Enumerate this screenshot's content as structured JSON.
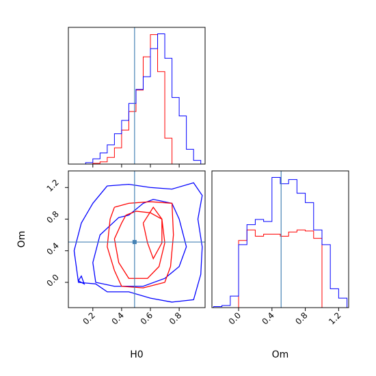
{
  "chart_data": {
    "type": "corner",
    "parameters": [
      "H0",
      "Om"
    ],
    "truth": {
      "H0": 0.49,
      "Om": 0.51
    },
    "colors": {
      "series_a": "#ff0000",
      "series_b": "#0000ff",
      "truth": "#4682b4"
    },
    "panels": [
      {
        "id": "hist-H0",
        "type": "histogram",
        "parameter": "H0",
        "xlim": [
          0.03,
          0.98
        ],
        "bin_edges": [
          0.05,
          0.1,
          0.15,
          0.2,
          0.25,
          0.3,
          0.35,
          0.4,
          0.45,
          0.5,
          0.55,
          0.6,
          0.65,
          0.7,
          0.75,
          0.8,
          0.85,
          0.9,
          0.95
        ],
        "series": [
          {
            "color": "#ff0000",
            "heights": [
              0,
              0,
              0,
              1,
              3,
              9,
              22,
              46,
              71,
              100,
              145,
              175,
              125,
              35,
              0,
              0,
              0,
              0
            ]
          },
          {
            "color": "#0000ff",
            "heights": [
              0,
              0,
              2,
              7,
              15,
              26,
              41,
              59,
              82,
              101,
              118,
              156,
              176,
              143,
              90,
              65,
              20,
              5
            ]
          }
        ]
      },
      {
        "id": "hist-Om",
        "type": "histogram",
        "parameter": "Om",
        "xlim": [
          -0.32,
          1.32
        ],
        "bin_edges": [
          -0.3,
          -0.2,
          -0.1,
          0.0,
          0.1,
          0.2,
          0.3,
          0.4,
          0.5,
          0.6,
          0.7,
          0.8,
          0.9,
          1.0,
          1.1,
          1.2,
          1.3
        ],
        "series": [
          {
            "color": "#ff0000",
            "heights": [
              0,
              0,
              0,
              64,
              74,
              68,
              70,
              70,
              68,
              72,
              74,
              73,
              66,
              0,
              0,
              0
            ]
          },
          {
            "color": "#0000ff",
            "heights": [
              1,
              2,
              11,
              60,
              79,
              84,
              82,
              124,
              118,
              122,
              109,
              100,
              74,
              60,
              18,
              9
            ]
          }
        ]
      },
      {
        "id": "contour-H0-Om",
        "type": "contour",
        "x": "H0",
        "y": "Om",
        "xlim": [
          0.03,
          0.98
        ],
        "ylim": [
          -0.32,
          1.41
        ],
        "series": [
          {
            "color": "#0000ff",
            "contours": [
              [
                [
                  0.3,
                  1.22
                ],
                [
                  0.45,
                  1.24
                ],
                [
                  0.6,
                  1.2
                ],
                [
                  0.75,
                  1.18
                ],
                [
                  0.9,
                  1.26
                ],
                [
                  0.96,
                  1.1
                ],
                [
                  0.93,
                  0.8
                ],
                [
                  0.96,
                  0.45
                ],
                [
                  0.95,
                  0.1
                ],
                [
                  0.9,
                  -0.22
                ],
                [
                  0.75,
                  -0.25
                ],
                [
                  0.6,
                  -0.2
                ],
                [
                  0.45,
                  -0.12
                ],
                [
                  0.3,
                  -0.12
                ],
                [
                  0.22,
                  -0.02
                ],
                [
                  0.1,
                  0.0
                ],
                [
                  0.07,
                  0.4
                ],
                [
                  0.12,
                  0.75
                ],
                [
                  0.2,
                  1.0
                ],
                [
                  0.3,
                  1.22
                ]
              ],
              [
                [
                  0.45,
                  0.85
                ],
                [
                  0.55,
                  1.0
                ],
                [
                  0.62,
                  1.05
                ],
                [
                  0.75,
                  1.0
                ],
                [
                  0.8,
                  0.8
                ],
                [
                  0.85,
                  0.45
                ],
                [
                  0.8,
                  0.2
                ],
                [
                  0.7,
                  0.05
                ],
                [
                  0.55,
                  -0.05
                ],
                [
                  0.35,
                  -0.05
                ],
                [
                  0.22,
                  0.0
                ],
                [
                  0.2,
                  0.25
                ],
                [
                  0.25,
                  0.6
                ],
                [
                  0.38,
                  0.82
                ],
                [
                  0.45,
                  0.85
                ]
              ],
              [
                [
                  0.1,
                  0.02
                ],
                [
                  0.14,
                  -0.02
                ],
                [
                  0.12,
                  0.08
                ],
                [
                  0.1,
                  0.02
                ]
              ]
            ]
          },
          {
            "color": "#ff0000",
            "contours": [
              [
                [
                  0.35,
                  0.95
                ],
                [
                  0.45,
                  1.0
                ],
                [
                  0.6,
                  1.02
                ],
                [
                  0.75,
                  1.0
                ],
                [
                  0.76,
                  0.6
                ],
                [
                  0.74,
                  0.2
                ],
                [
                  0.7,
                  0.0
                ],
                [
                  0.55,
                  -0.07
                ],
                [
                  0.4,
                  -0.05
                ],
                [
                  0.35,
                  0.15
                ],
                [
                  0.3,
                  0.45
                ],
                [
                  0.32,
                  0.8
                ],
                [
                  0.35,
                  0.95
                ]
              ],
              [
                [
                  0.43,
                  0.85
                ],
                [
                  0.5,
                  0.9
                ],
                [
                  0.6,
                  0.88
                ],
                [
                  0.68,
                  0.8
                ],
                [
                  0.7,
                  0.5
                ],
                [
                  0.66,
                  0.2
                ],
                [
                  0.58,
                  0.05
                ],
                [
                  0.45,
                  0.05
                ],
                [
                  0.38,
                  0.25
                ],
                [
                  0.35,
                  0.55
                ],
                [
                  0.4,
                  0.75
                ],
                [
                  0.43,
                  0.85
                ]
              ],
              [
                [
                  0.55,
                  0.75
                ],
                [
                  0.62,
                  0.95
                ],
                [
                  0.68,
                  0.8
                ],
                [
                  0.68,
                  0.5
                ],
                [
                  0.62,
                  0.3
                ],
                [
                  0.58,
                  0.5
                ],
                [
                  0.55,
                  0.75
                ]
              ]
            ]
          }
        ]
      }
    ],
    "axes": {
      "H0": {
        "xlabel": "H0",
        "ticks": [
          0.2,
          0.4,
          0.6,
          0.8
        ],
        "tick_labels": [
          "0.2",
          "0.4",
          "0.6",
          "0.8"
        ]
      },
      "Om_x": {
        "xlabel": "Om",
        "ticks": [
          0.0,
          0.4,
          0.8,
          1.2
        ],
        "tick_labels": [
          "0.0",
          "0.4",
          "0.8",
          "1.2"
        ]
      },
      "Om_y": {
        "ylabel": "Om",
        "ticks": [
          0.0,
          0.4,
          0.8,
          1.2
        ],
        "tick_labels": [
          "0.0",
          "0.4",
          "0.8",
          "1.2"
        ]
      }
    }
  }
}
